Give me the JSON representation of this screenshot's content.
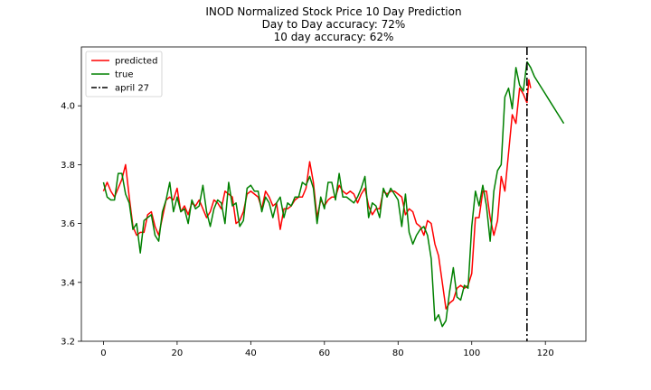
{
  "chart_data": {
    "type": "line",
    "title": "INOD Normalized Stock Price 10 Day Prediction",
    "subtitle_lines": [
      "Day to Day accuracy: 72%",
      "10 day accuracy: 62%"
    ],
    "xlabel": "",
    "ylabel": "",
    "xlim": [
      -6,
      131
    ],
    "ylim": [
      3.2,
      4.2
    ],
    "x_ticks": [
      0,
      20,
      40,
      60,
      80,
      100,
      120
    ],
    "y_ticks": [
      3.2,
      3.4,
      3.6,
      3.8,
      4.0
    ],
    "x_tick_labels": [
      "0",
      "20",
      "40",
      "60",
      "80",
      "100",
      "120"
    ],
    "y_tick_labels": [
      "3.2",
      "3.4",
      "3.6",
      "3.8",
      "4.0"
    ],
    "grid": false,
    "legend_position": "top-left",
    "series": [
      {
        "name": "predicted",
        "color": "#ff0000",
        "style": "solid",
        "x_start": 0,
        "values": [
          3.71,
          3.74,
          3.71,
          3.69,
          3.72,
          3.75,
          3.8,
          3.69,
          3.59,
          3.56,
          3.57,
          3.57,
          3.63,
          3.64,
          3.59,
          3.56,
          3.62,
          3.68,
          3.69,
          3.68,
          3.72,
          3.64,
          3.66,
          3.63,
          3.67,
          3.66,
          3.68,
          3.65,
          3.62,
          3.64,
          3.68,
          3.67,
          3.65,
          3.71,
          3.7,
          3.69,
          3.6,
          3.61,
          3.64,
          3.7,
          3.71,
          3.7,
          3.69,
          3.65,
          3.71,
          3.69,
          3.66,
          3.67,
          3.58,
          3.65,
          3.65,
          3.66,
          3.68,
          3.69,
          3.69,
          3.72,
          3.81,
          3.74,
          3.62,
          3.68,
          3.66,
          3.68,
          3.69,
          3.69,
          3.73,
          3.71,
          3.7,
          3.71,
          3.7,
          3.67,
          3.7,
          3.72,
          3.66,
          3.63,
          3.65,
          3.65,
          3.71,
          3.7,
          3.71,
          3.71,
          3.7,
          3.69,
          3.63,
          3.65,
          3.64,
          3.6,
          3.59,
          3.56,
          3.61,
          3.6,
          3.53,
          3.49,
          3.4,
          3.31,
          3.33,
          3.34,
          3.38,
          3.39,
          3.38,
          3.39,
          3.43,
          3.62,
          3.62,
          3.71,
          3.71,
          3.62,
          3.56,
          3.61,
          3.76,
          3.71,
          3.84,
          3.97,
          3.94,
          4.06,
          4.04,
          4.01
        ],
        "forecast_connector": [
          4.01,
          4.09,
          4.06
        ]
      },
      {
        "name": "true",
        "color": "#008000",
        "style": "solid",
        "x_start": 0,
        "values": [
          3.74,
          3.69,
          3.68,
          3.68,
          3.77,
          3.77,
          3.7,
          3.67,
          3.58,
          3.6,
          3.5,
          3.61,
          3.62,
          3.63,
          3.56,
          3.54,
          3.64,
          3.68,
          3.74,
          3.64,
          3.69,
          3.64,
          3.65,
          3.6,
          3.68,
          3.65,
          3.66,
          3.73,
          3.64,
          3.59,
          3.65,
          3.68,
          3.67,
          3.6,
          3.74,
          3.66,
          3.67,
          3.59,
          3.61,
          3.72,
          3.73,
          3.71,
          3.71,
          3.64,
          3.69,
          3.67,
          3.62,
          3.67,
          3.69,
          3.62,
          3.67,
          3.66,
          3.69,
          3.69,
          3.74,
          3.73,
          3.76,
          3.72,
          3.6,
          3.69,
          3.65,
          3.74,
          3.74,
          3.68,
          3.77,
          3.69,
          3.69,
          3.68,
          3.67,
          3.69,
          3.72,
          3.76,
          3.62,
          3.67,
          3.66,
          3.62,
          3.72,
          3.69,
          3.72,
          3.7,
          3.68,
          3.59,
          3.7,
          3.57,
          3.53,
          3.56,
          3.58,
          3.59,
          3.56,
          3.48,
          3.27,
          3.29,
          3.25,
          3.27,
          3.37,
          3.45,
          3.35,
          3.34,
          3.39,
          3.38,
          3.59,
          3.71,
          3.66,
          3.73,
          3.66,
          3.54,
          3.71,
          3.78,
          3.8,
          4.03,
          4.06,
          3.99,
          4.13,
          4.07,
          4.05,
          4.15
        ]
      },
      {
        "name": "true_forecast_curve",
        "color": "#008000",
        "style": "solid",
        "x": [
          115,
          116,
          117,
          118,
          119,
          120,
          121,
          122,
          123,
          124,
          125
        ],
        "values": [
          4.15,
          4.13,
          4.1,
          4.08,
          4.06,
          4.04,
          4.02,
          4.0,
          3.98,
          3.96,
          3.94
        ]
      }
    ],
    "vline": {
      "x": 115,
      "label": "april 27",
      "color": "#000000",
      "style": "dashdot"
    },
    "legend_entries": [
      {
        "label": "predicted",
        "color": "#ff0000",
        "style": "solid"
      },
      {
        "label": "true",
        "color": "#008000",
        "style": "solid"
      },
      {
        "label": "april 27",
        "color": "#000000",
        "style": "dashdot"
      }
    ]
  }
}
